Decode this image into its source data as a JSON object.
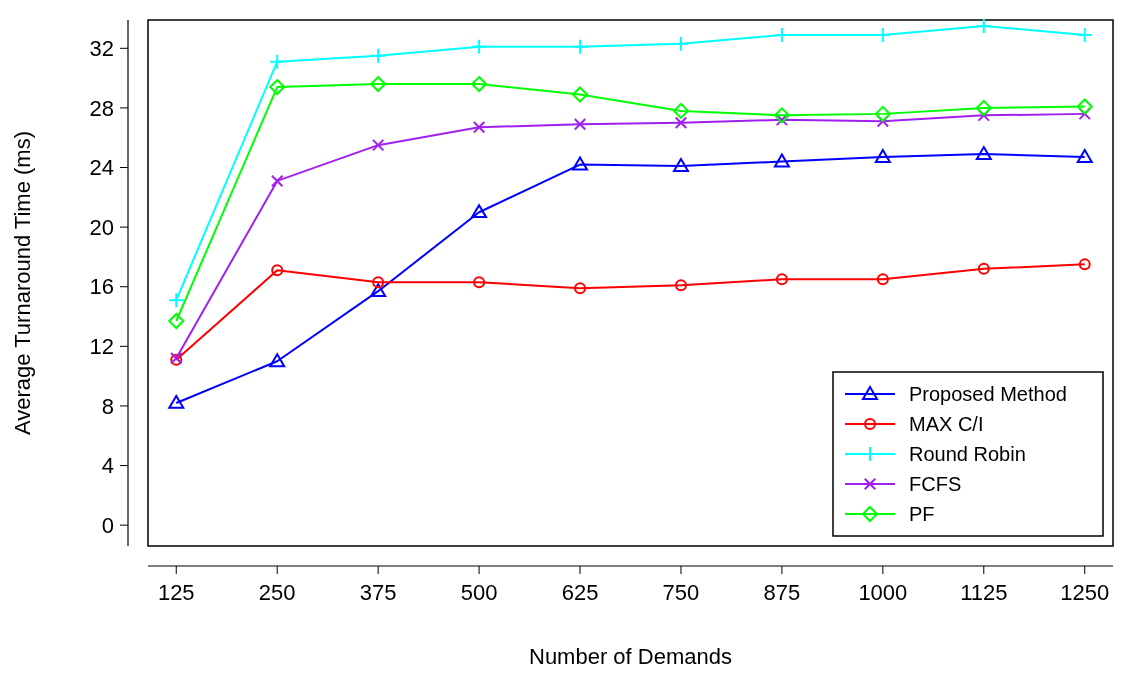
{
  "chart_data": {
    "type": "line",
    "xlabel": "Number of Demands",
    "ylabel": "Average Turnaround Time (ms)",
    "x": [
      125,
      250,
      375,
      500,
      625,
      750,
      875,
      1000,
      1125,
      1250
    ],
    "xlim": [
      90,
      1285
    ],
    "xticks": [
      125,
      250,
      375,
      500,
      625,
      750,
      875,
      1000,
      1125,
      1250
    ],
    "ylim": [
      -1.4,
      33.9
    ],
    "yticks": [
      0,
      4,
      8,
      12,
      16,
      20,
      24,
      28,
      32
    ],
    "grid": false,
    "legend": "bottom right",
    "line_style": "solid",
    "series": [
      {
        "name": "Proposed Method",
        "color": "#0000ff",
        "marker": "triangle",
        "values": [
          8.2,
          11.0,
          15.7,
          21.0,
          24.2,
          24.1,
          24.4,
          24.7,
          24.9,
          24.7
        ]
      },
      {
        "name": "MAX C/I",
        "color": "#ff0000",
        "marker": "circle",
        "values": [
          11.1,
          17.1,
          16.3,
          16.3,
          15.9,
          16.1,
          16.5,
          16.5,
          17.2,
          17.5
        ]
      },
      {
        "name": "Round Robin",
        "color": "#00ffff",
        "marker": "plus",
        "values": [
          15.1,
          31.1,
          31.5,
          32.1,
          32.1,
          32.3,
          32.9,
          32.9,
          33.5,
          32.9
        ]
      },
      {
        "name": "FCFS",
        "color": "#a020f0",
        "marker": "cross",
        "values": [
          11.2,
          23.1,
          25.5,
          26.7,
          26.9,
          27.0,
          27.2,
          27.1,
          27.5,
          27.6
        ]
      },
      {
        "name": "PF",
        "color": "#00ff00",
        "marker": "diamond",
        "values": [
          13.7,
          29.4,
          29.6,
          29.6,
          28.9,
          27.8,
          27.5,
          27.6,
          28.0,
          28.1
        ]
      }
    ]
  }
}
